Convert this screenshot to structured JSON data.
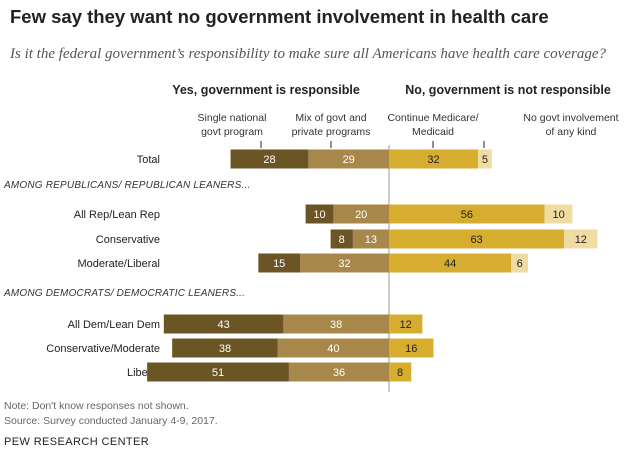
{
  "header": {
    "title": "Few say they want no government involvement in health care",
    "subtitle": "Is it the federal government’s responsibility to make sure all Americans have health care coverage?"
  },
  "footer": {
    "note": "Note: Don't know responses not shown.",
    "source": "Source: Survey conducted January 4-9, 2017.",
    "org": "PEW RESEARCH CENTER"
  },
  "chart_data": {
    "type": "bar",
    "orientation": "horizontal",
    "stacked": "diverging",
    "group_headers": {
      "yes": "Yes, government is responsible",
      "no": "No, government is not responsible"
    },
    "series": [
      {
        "name": "Single national govt program",
        "label_lines": [
          "Single national",
          "govt program"
        ],
        "side": "yes",
        "color": "#6b5524",
        "values": [
          28,
          10,
          8,
          15,
          43,
          38,
          51
        ]
      },
      {
        "name": "Mix of govt and private programs",
        "label_lines": [
          "Mix of govt and",
          "private programs"
        ],
        "side": "yes",
        "color": "#a7884a",
        "values": [
          29,
          20,
          13,
          32,
          38,
          40,
          36
        ]
      },
      {
        "name": "Continue Medicare/ Medicaid",
        "label_lines": [
          "Continue Medicare/",
          "Medicaid"
        ],
        "side": "no",
        "color": "#d6ad2e",
        "values": [
          32,
          56,
          63,
          44,
          12,
          16,
          8
        ]
      },
      {
        "name": "No govt involvement of any kind",
        "label_lines": [
          "No govt involvement",
          "of any kind"
        ],
        "side": "no",
        "color": "#f0dca3",
        "values": [
          5,
          10,
          12,
          6,
          null,
          null,
          null
        ]
      }
    ],
    "sections": [
      {
        "header": "",
        "rows": [
          "Total"
        ]
      },
      {
        "header": "AMONG REPUBLICANS/ REPUBLICAN LEANERS...",
        "rows": [
          "All Rep/Lean Rep",
          "Conservative",
          "Moderate/Liberal"
        ]
      },
      {
        "header": "AMONG DEMOCRATS/ DEMOCRATIC LEANERS...",
        "rows": [
          "All Dem/Lean Dem",
          "Conservative/Moderate",
          "Liberal"
        ]
      }
    ],
    "categories": [
      "Total",
      "All Rep/Lean Rep",
      "Conservative",
      "Moderate/Liberal",
      "All Dem/Lean Dem",
      "Conservative/Moderate",
      "Liberal"
    ],
    "unit": "%",
    "grid": false,
    "legend": "labels above first bar"
  }
}
